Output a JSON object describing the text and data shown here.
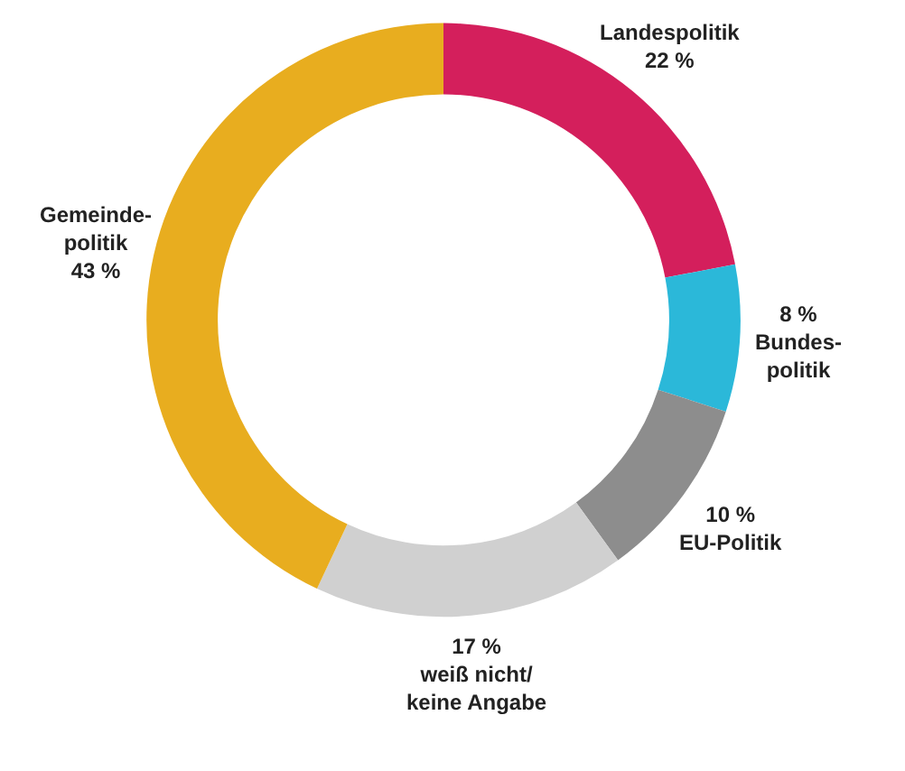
{
  "chart_data": {
    "type": "donut",
    "categories": [
      "Landespolitik",
      "Bundes-\npolitik",
      "EU-Politik",
      "weiß nicht/\nkeine Angabe",
      "Gemeinde-\npolitik"
    ],
    "values": [
      22,
      8,
      10,
      17,
      43
    ],
    "value_labels": [
      "22 %",
      "8 %",
      "10 %",
      "17 %",
      "43 %"
    ],
    "colors": [
      "#d41f5c",
      "#2bb8d9",
      "#8d8d8d",
      "#d0d0d0",
      "#e8ad1f"
    ],
    "legend": false
  }
}
